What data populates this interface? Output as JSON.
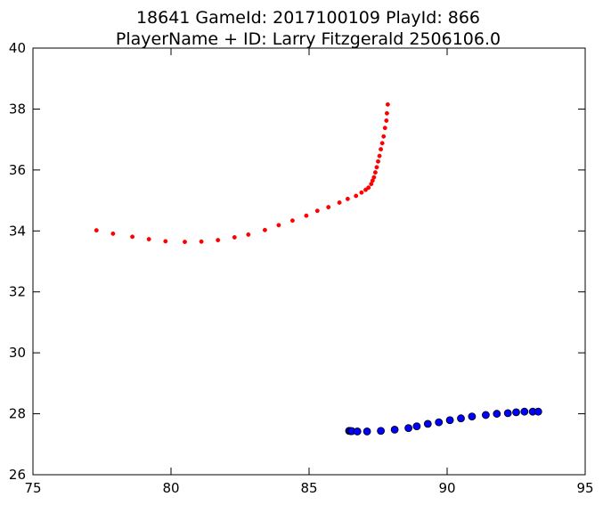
{
  "chart_data": {
    "type": "scatter",
    "title": "18641 GameId: 2017100109 PlayId: 866",
    "subtitle": "PlayerName + ID: Larry Fitzgerald 2506106.0",
    "xlabel": "",
    "ylabel": "",
    "xlim": [
      75,
      95
    ],
    "ylim": [
      26,
      40
    ],
    "xticks": [
      75,
      80,
      85,
      90,
      95
    ],
    "yticks": [
      26,
      28,
      30,
      32,
      34,
      36,
      38,
      40
    ],
    "xtick_labels": [
      "75",
      "80",
      "85",
      "90",
      "95"
    ],
    "ytick_labels": [
      "26",
      "28",
      "30",
      "32",
      "34",
      "36",
      "38",
      "40"
    ],
    "grid": false,
    "series": [
      {
        "color": "#ff0000",
        "marker": "small-dot",
        "points": [
          [
            77.3,
            34.02
          ],
          [
            77.9,
            33.91
          ],
          [
            78.6,
            33.81
          ],
          [
            79.2,
            33.73
          ],
          [
            79.8,
            33.66
          ],
          [
            80.5,
            33.64
          ],
          [
            81.1,
            33.65
          ],
          [
            81.7,
            33.7
          ],
          [
            82.3,
            33.79
          ],
          [
            82.8,
            33.88
          ],
          [
            83.4,
            34.03
          ],
          [
            83.9,
            34.19
          ],
          [
            84.4,
            34.34
          ],
          [
            84.9,
            34.5
          ],
          [
            85.3,
            34.66
          ],
          [
            85.7,
            34.78
          ],
          [
            86.1,
            34.93
          ],
          [
            86.4,
            35.05
          ],
          [
            86.7,
            35.15
          ],
          [
            86.9,
            35.26
          ],
          [
            87.05,
            35.35
          ],
          [
            87.15,
            35.42
          ],
          [
            87.25,
            35.54
          ],
          [
            87.3,
            35.65
          ],
          [
            87.35,
            35.76
          ],
          [
            87.4,
            35.92
          ],
          [
            87.45,
            36.09
          ],
          [
            87.5,
            36.28
          ],
          [
            87.55,
            36.46
          ],
          [
            87.6,
            36.68
          ],
          [
            87.65,
            36.88
          ],
          [
            87.7,
            37.1
          ],
          [
            87.75,
            37.38
          ],
          [
            87.8,
            37.62
          ],
          [
            87.82,
            37.86
          ],
          [
            87.85,
            38.15
          ]
        ]
      },
      {
        "color": "#0000ff",
        "marker": "circle",
        "points": [
          [
            86.45,
            27.44
          ],
          [
            86.5,
            27.43
          ],
          [
            86.55,
            27.43
          ],
          [
            86.75,
            27.42
          ],
          [
            87.1,
            27.42
          ],
          [
            87.6,
            27.44
          ],
          [
            88.1,
            27.48
          ],
          [
            88.6,
            27.53
          ],
          [
            88.9,
            27.59
          ],
          [
            89.3,
            27.67
          ],
          [
            89.7,
            27.72
          ],
          [
            90.1,
            27.79
          ],
          [
            90.5,
            27.85
          ],
          [
            90.9,
            27.91
          ],
          [
            91.4,
            27.96
          ],
          [
            91.8,
            28.0
          ],
          [
            92.2,
            28.02
          ],
          [
            92.5,
            28.05
          ],
          [
            92.8,
            28.07
          ],
          [
            93.1,
            28.07
          ],
          [
            93.3,
            28.07
          ]
        ]
      }
    ]
  }
}
